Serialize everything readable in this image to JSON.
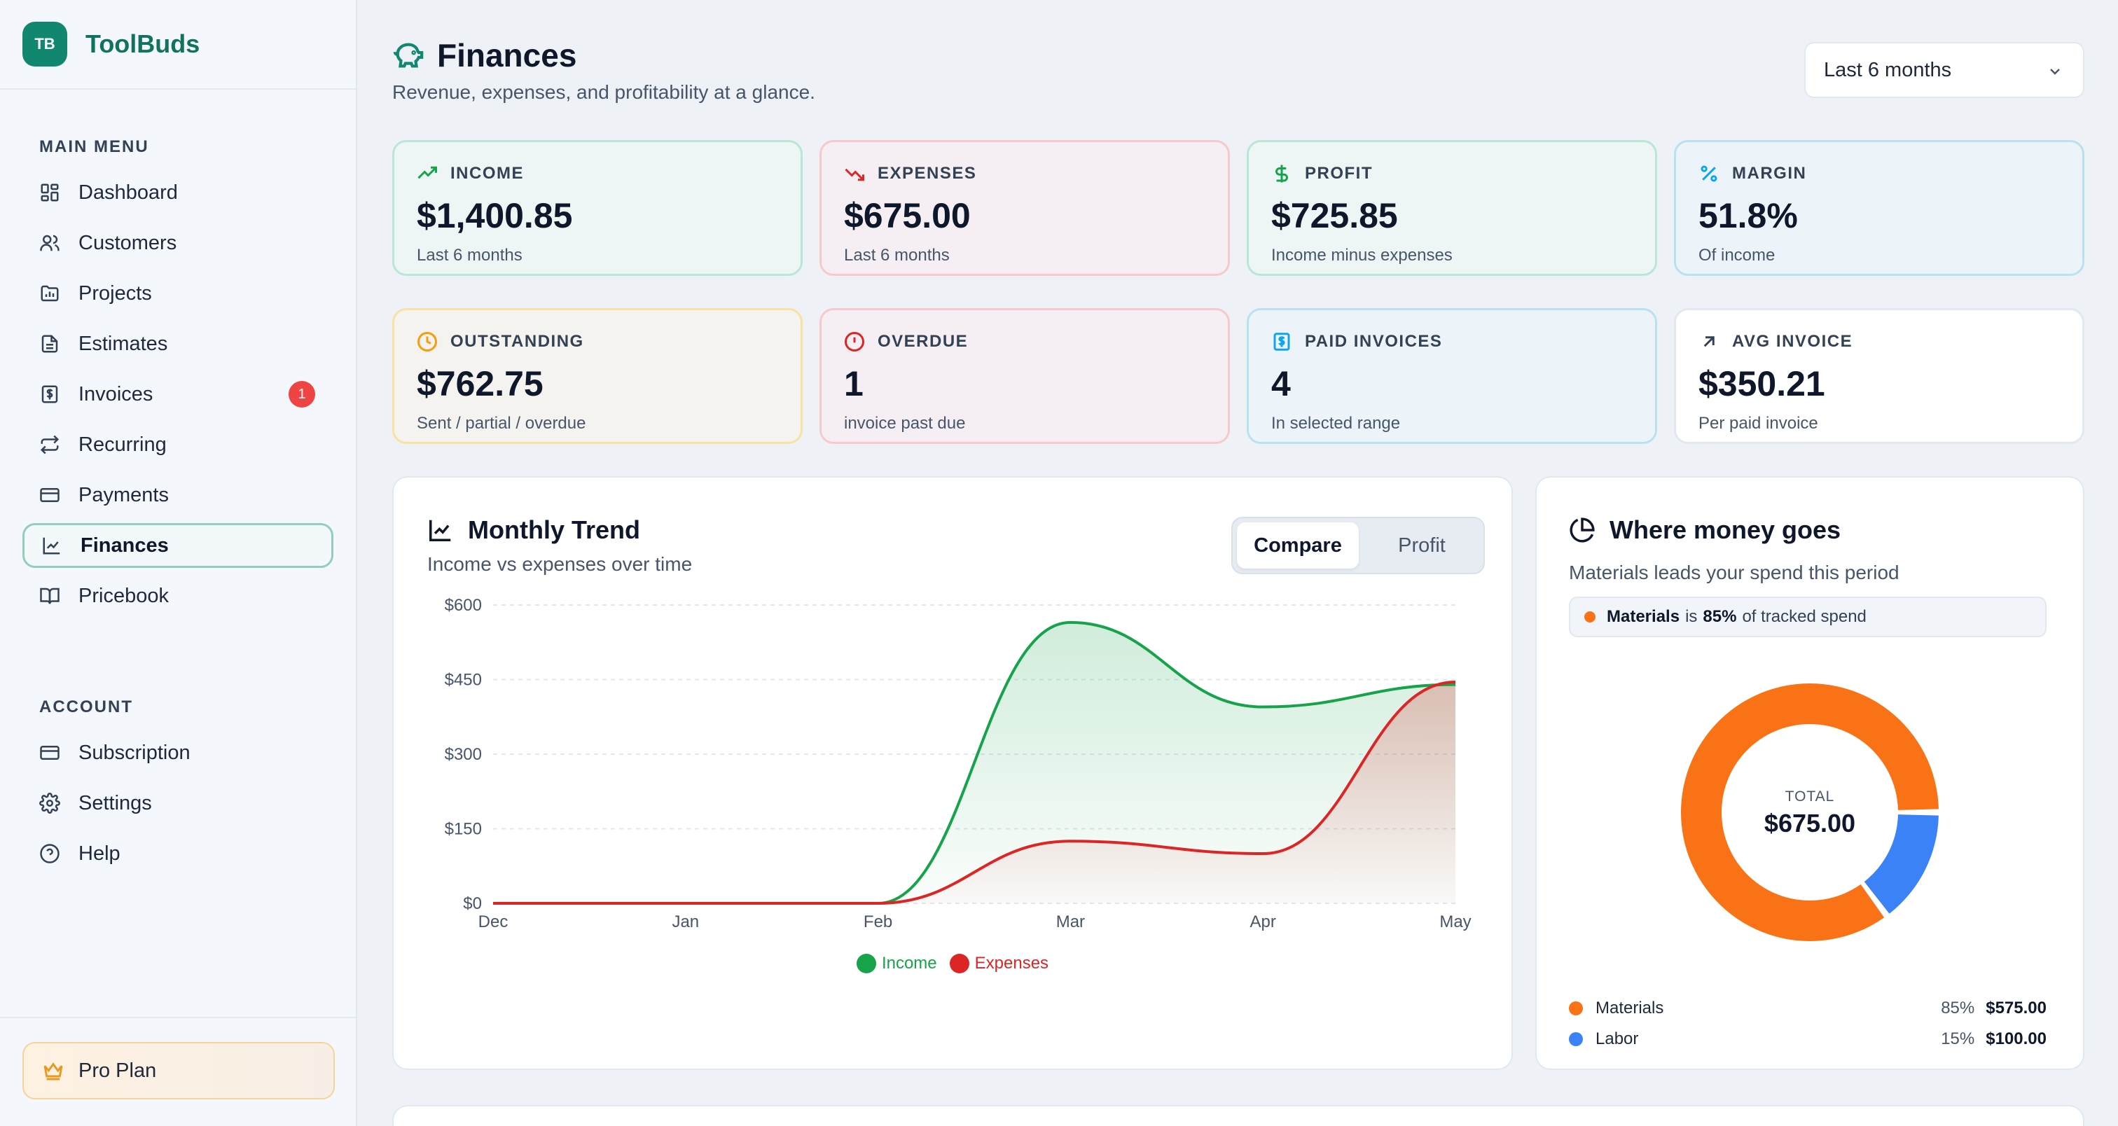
{
  "brand": {
    "initials": "TB",
    "name": "ToolBuds"
  },
  "sidebar": {
    "main_menu_label": "MAIN MENU",
    "items": [
      {
        "label": "Dashboard",
        "icon": "dashboard-icon"
      },
      {
        "label": "Customers",
        "icon": "users-icon"
      },
      {
        "label": "Projects",
        "icon": "folder-chart-icon"
      },
      {
        "label": "Estimates",
        "icon": "document-icon"
      },
      {
        "label": "Invoices",
        "icon": "invoice-icon",
        "badge": "1"
      },
      {
        "label": "Recurring",
        "icon": "repeat-icon"
      },
      {
        "label": "Payments",
        "icon": "credit-card-icon"
      },
      {
        "label": "Finances",
        "icon": "line-chart-icon",
        "active": true
      },
      {
        "label": "Pricebook",
        "icon": "book-open-icon"
      }
    ],
    "account_label": "ACCOUNT",
    "account_items": [
      {
        "label": "Subscription",
        "icon": "credit-card-icon"
      },
      {
        "label": "Settings",
        "icon": "gear-icon"
      },
      {
        "label": "Help",
        "icon": "help-circle-icon"
      }
    ],
    "plan_label": "Pro Plan"
  },
  "header": {
    "title": "Finances",
    "subtitle": "Revenue, expenses, and profitability at a glance.",
    "range_select": "Last 6 months"
  },
  "stats": {
    "income": {
      "label": "INCOME",
      "value": "$1,400.85",
      "sub": "Last 6 months"
    },
    "expenses": {
      "label": "EXPENSES",
      "value": "$675.00",
      "sub": "Last 6 months"
    },
    "profit": {
      "label": "PROFIT",
      "value": "$725.85",
      "sub": "Income minus expenses"
    },
    "margin": {
      "label": "MARGIN",
      "value": "51.8%",
      "sub": "Of income"
    },
    "outstanding": {
      "label": "OUTSTANDING",
      "value": "$762.75",
      "sub": "Sent / partial / overdue"
    },
    "overdue": {
      "label": "OVERDUE",
      "value": "1",
      "sub": "invoice past due"
    },
    "paid_invoices": {
      "label": "PAID INVOICES",
      "value": "4",
      "sub": "In selected range"
    },
    "avg_invoice": {
      "label": "AVG INVOICE",
      "value": "$350.21",
      "sub": "Per paid invoice"
    }
  },
  "trend": {
    "title": "Monthly Trend",
    "subtitle": "Income vs expenses over time",
    "toggle_compare": "Compare",
    "toggle_profit": "Profit"
  },
  "spend": {
    "title": "Where money goes",
    "subtitle": "Materials leads your spend this period",
    "callout_name": "Materials",
    "callout_is": "is",
    "callout_pct": "85%",
    "callout_tail": "of tracked spend",
    "total_label": "TOTAL",
    "total_value": "$675.00",
    "rows": [
      {
        "name": "Materials",
        "pct": "85%",
        "amount": "$575.00"
      },
      {
        "name": "Labor",
        "pct": "15%",
        "amount": "$100.00"
      }
    ]
  },
  "colors": {
    "accent": "#11876f",
    "income": "#16a34a",
    "expenses": "#dc2626",
    "materials": "#f97316",
    "labor": "#3b82f6"
  },
  "chart_data": [
    {
      "type": "area",
      "categories": [
        "Dec",
        "Jan",
        "Feb",
        "Mar",
        "Apr",
        "May"
      ],
      "series": [
        {
          "name": "Income",
          "values": [
            0,
            0,
            0,
            565,
            395,
            440
          ]
        },
        {
          "name": "Expenses",
          "values": [
            0,
            0,
            0,
            125,
            100,
            445
          ]
        }
      ],
      "yticks": [
        "$0",
        "$150",
        "$300",
        "$450",
        "$600"
      ],
      "ylim": [
        0,
        600
      ],
      "grid": true,
      "legend": "bottom"
    },
    {
      "type": "pie",
      "categories": [
        "Materials",
        "Labor"
      ],
      "values": [
        575,
        100
      ],
      "legend": "bottom"
    }
  ]
}
